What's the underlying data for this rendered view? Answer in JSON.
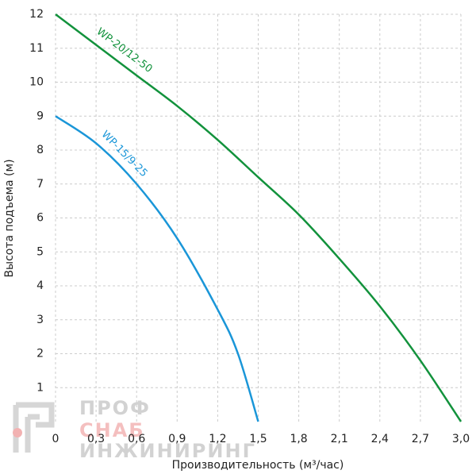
{
  "chart_data": {
    "type": "line",
    "xlabel": "Производительность (м³/час)",
    "ylabel": "Высота подъема (м)",
    "xlim": [
      0,
      3.0
    ],
    "ylim": [
      0,
      12
    ],
    "xticks": [
      0,
      {
        "value": 0.3,
        "label": "0,3"
      },
      {
        "value": 0.6,
        "label": "0,6"
      },
      {
        "value": 0.9,
        "label": "0,9"
      },
      {
        "value": 1.2,
        "label": "1,2"
      },
      {
        "value": 1.5,
        "label": "1,5"
      },
      {
        "value": 1.8,
        "label": "1,8"
      },
      {
        "value": 2.1,
        "label": "2,1"
      },
      {
        "value": 2.4,
        "label": "2,4"
      },
      {
        "value": 2.7,
        "label": "2,7"
      },
      {
        "value": 3.0,
        "label": "3,0"
      }
    ],
    "yticks": [
      1,
      2,
      3,
      4,
      5,
      6,
      7,
      8,
      9,
      10,
      11,
      12
    ],
    "grid": true,
    "series": [
      {
        "name": "WP-20/12-50",
        "color": "#12923c",
        "x": [
          0,
          0.3,
          0.6,
          0.9,
          1.2,
          1.5,
          1.8,
          2.1,
          2.4,
          2.7,
          3.0
        ],
        "values": [
          12,
          11.1,
          10.2,
          9.3,
          8.3,
          7.2,
          6.1,
          4.8,
          3.4,
          1.8,
          0
        ]
      },
      {
        "name": "WP-15/9-25",
        "color": "#1a96d8",
        "x": [
          0,
          0.3,
          0.6,
          0.9,
          1.2,
          1.35,
          1.5
        ],
        "values": [
          9,
          8.2,
          7.0,
          5.4,
          3.3,
          2.0,
          0
        ]
      }
    ]
  },
  "watermark": [
    "ПРОФ",
    "СНАБ",
    "ИНЖИНИРИНГ"
  ]
}
